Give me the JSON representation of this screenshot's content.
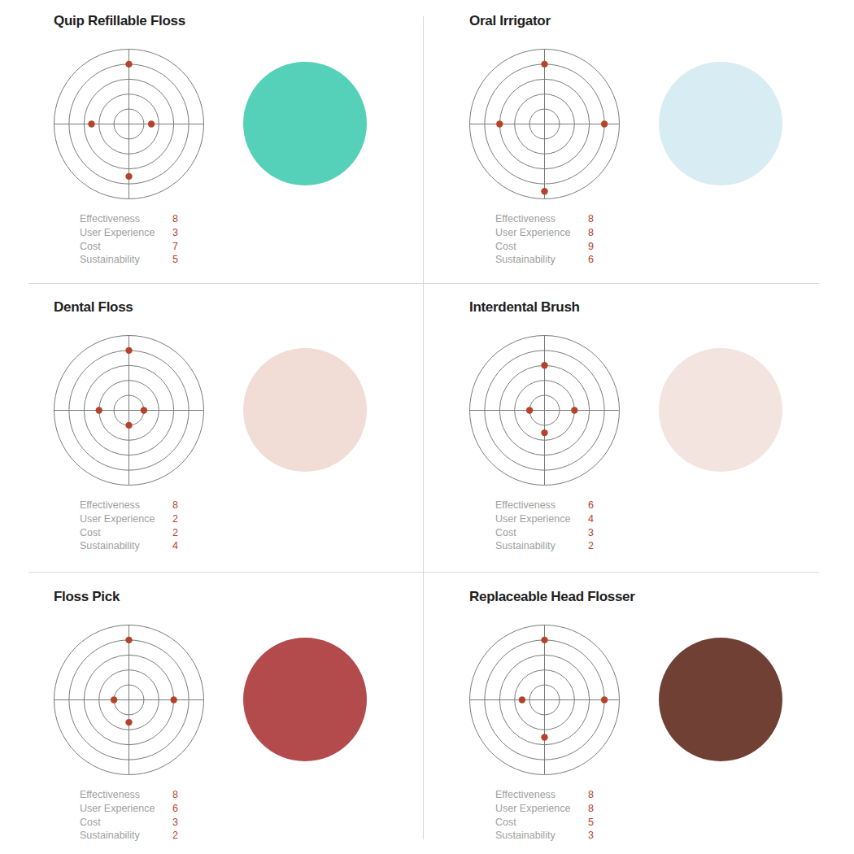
{
  "chart_data": [
    {
      "type": "radar",
      "title": "Quip Refillable Floss",
      "categories": [
        "Effectiveness",
        "User Experience",
        "Cost",
        "Sustainability"
      ],
      "values": [
        8,
        3,
        7,
        5
      ],
      "color": "#b5432a",
      "rlim": [
        0,
        10
      ],
      "rticks": [
        2,
        4,
        6,
        8,
        10
      ],
      "tick_labels": false
    },
    {
      "type": "radar",
      "title": "Oral Irrigator",
      "categories": [
        "Effectiveness",
        "User Experience",
        "Cost",
        "Sustainability"
      ],
      "values": [
        8,
        8,
        9,
        6
      ],
      "color": "#b5432a",
      "rlim": [
        0,
        10
      ],
      "rticks": [
        2,
        4,
        6,
        8,
        10
      ],
      "tick_labels": false
    },
    {
      "type": "radar",
      "title": "Dental Floss",
      "categories": [
        "Effectiveness",
        "User Experience",
        "Cost",
        "Sustainability"
      ],
      "values": [
        8,
        2,
        2,
        4
      ],
      "color": "#b5432a",
      "rlim": [
        0,
        10
      ],
      "rticks": [
        2,
        4,
        6,
        8,
        10
      ],
      "tick_labels": false
    },
    {
      "type": "radar",
      "title": "Interdental Brush",
      "categories": [
        "Effectiveness",
        "User Experience",
        "Cost",
        "Sustainability"
      ],
      "values": [
        6,
        4,
        3,
        2
      ],
      "color": "#b5432a",
      "rlim": [
        0,
        10
      ],
      "rticks": [
        2,
        4,
        6,
        8,
        10
      ],
      "tick_labels": false
    },
    {
      "type": "radar",
      "title": "Floss Pick",
      "categories": [
        "Effectiveness",
        "User Experience",
        "Cost",
        "Sustainability"
      ],
      "values": [
        8,
        6,
        3,
        2
      ],
      "color": "#b5432a",
      "rlim": [
        0,
        10
      ],
      "rticks": [
        2,
        4,
        6,
        8,
        10
      ],
      "tick_labels": false
    },
    {
      "type": "radar",
      "title": "Replaceable Head Flosser",
      "categories": [
        "Effectiveness",
        "User Experience",
        "Cost",
        "Sustainability"
      ],
      "values": [
        8,
        8,
        5,
        3
      ],
      "color": "#b5432a",
      "rlim": [
        0,
        10
      ],
      "rticks": [
        2,
        4,
        6,
        8,
        10
      ],
      "tick_labels": false
    }
  ]
}
